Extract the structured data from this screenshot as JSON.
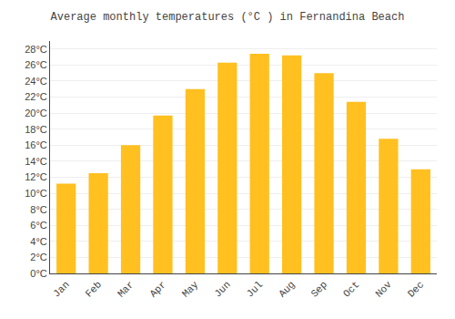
{
  "chart_data": {
    "type": "bar",
    "title": "Average monthly temperatures (°C ) in Fernandina Beach",
    "categories": [
      "Jan",
      "Feb",
      "Mar",
      "Apr",
      "May",
      "Jun",
      "Jul",
      "Aug",
      "Sep",
      "Oct",
      "Nov",
      "Dec"
    ],
    "values": [
      11.2,
      12.5,
      16.0,
      19.7,
      23.0,
      26.3,
      27.4,
      27.2,
      25.0,
      21.4,
      16.8,
      13.0
    ],
    "color": "#FFC020",
    "ylim": [
      0,
      29
    ],
    "yticks": [
      {
        "value": 0,
        "label": "0°C"
      },
      {
        "value": 2,
        "label": "2°C"
      },
      {
        "value": 4,
        "label": "4°C"
      },
      {
        "value": 6,
        "label": "6°C"
      },
      {
        "value": 8,
        "label": "8°C"
      },
      {
        "value": 10,
        "label": "10°C"
      },
      {
        "value": 12,
        "label": "12°C"
      },
      {
        "value": 14,
        "label": "14°C"
      },
      {
        "value": 16,
        "label": "16°C"
      },
      {
        "value": 18,
        "label": "18°C"
      },
      {
        "value": 20,
        "label": "20°C"
      },
      {
        "value": 22,
        "label": "22°C"
      },
      {
        "value": 24,
        "label": "24°C"
      },
      {
        "value": 26,
        "label": "26°C"
      },
      {
        "value": 28,
        "label": "28°C"
      }
    ],
    "grid": true
  }
}
